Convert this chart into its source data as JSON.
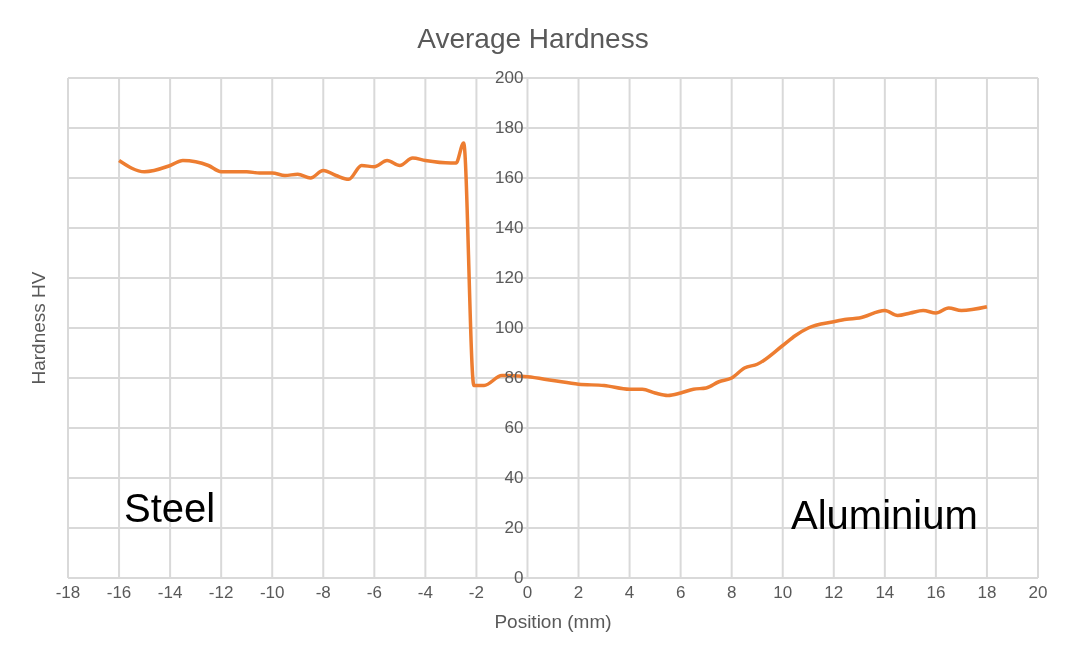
{
  "chart_data": {
    "type": "line",
    "title": "Average Hardness",
    "xlabel": "Position (mm)",
    "ylabel": "Hardness HV",
    "annotations": [
      "Steel",
      "Aluminium"
    ],
    "x": [
      -16,
      -15,
      -14,
      -13.5,
      -13,
      -12.5,
      -12,
      -11,
      -10.5,
      -10,
      -9.5,
      -9,
      -8.5,
      -8,
      -7.5,
      -7,
      -6.5,
      -6,
      -5.5,
      -5,
      -4.5,
      -4,
      -3,
      -2.8,
      -2.5,
      -2.1,
      -1.7,
      -1,
      0,
      1,
      2,
      3,
      4,
      4.5,
      5,
      5.5,
      6,
      6.5,
      7,
      7.5,
      8,
      8.5,
      9,
      10,
      10.5,
      11,
      12,
      12.5,
      13,
      14,
      14.5,
      15,
      15.5,
      16,
      16.5,
      17,
      18
    ],
    "series": [
      {
        "color": "#ed7d31",
        "values": [
          167,
          162.5,
          165,
          167,
          166.5,
          165,
          162.5,
          162.5,
          162,
          162,
          161,
          161.5,
          160,
          163,
          161,
          159.5,
          165,
          164.5,
          167,
          165,
          168,
          167,
          166,
          166,
          174,
          77,
          77,
          81,
          80.5,
          79,
          77.5,
          77,
          75.5,
          75.5,
          74,
          73,
          74,
          75.5,
          76,
          78.5,
          80,
          84,
          85.5,
          93,
          97,
          100,
          102.5,
          103.5,
          104,
          107,
          105,
          106,
          107,
          106,
          108,
          107,
          108.5
        ]
      }
    ],
    "xlim": [
      -18,
      20
    ],
    "xticks": [
      -18,
      -16,
      -14,
      -12,
      -10,
      -8,
      -6,
      -4,
      -2,
      0,
      2,
      4,
      6,
      8,
      10,
      12,
      14,
      16,
      18,
      20
    ],
    "ylim": [
      0,
      200
    ],
    "yticks": [
      0,
      20,
      40,
      60,
      80,
      100,
      120,
      140,
      160,
      180,
      200
    ],
    "grid": true,
    "legend": false,
    "marker": "none",
    "line_style": "solid"
  }
}
